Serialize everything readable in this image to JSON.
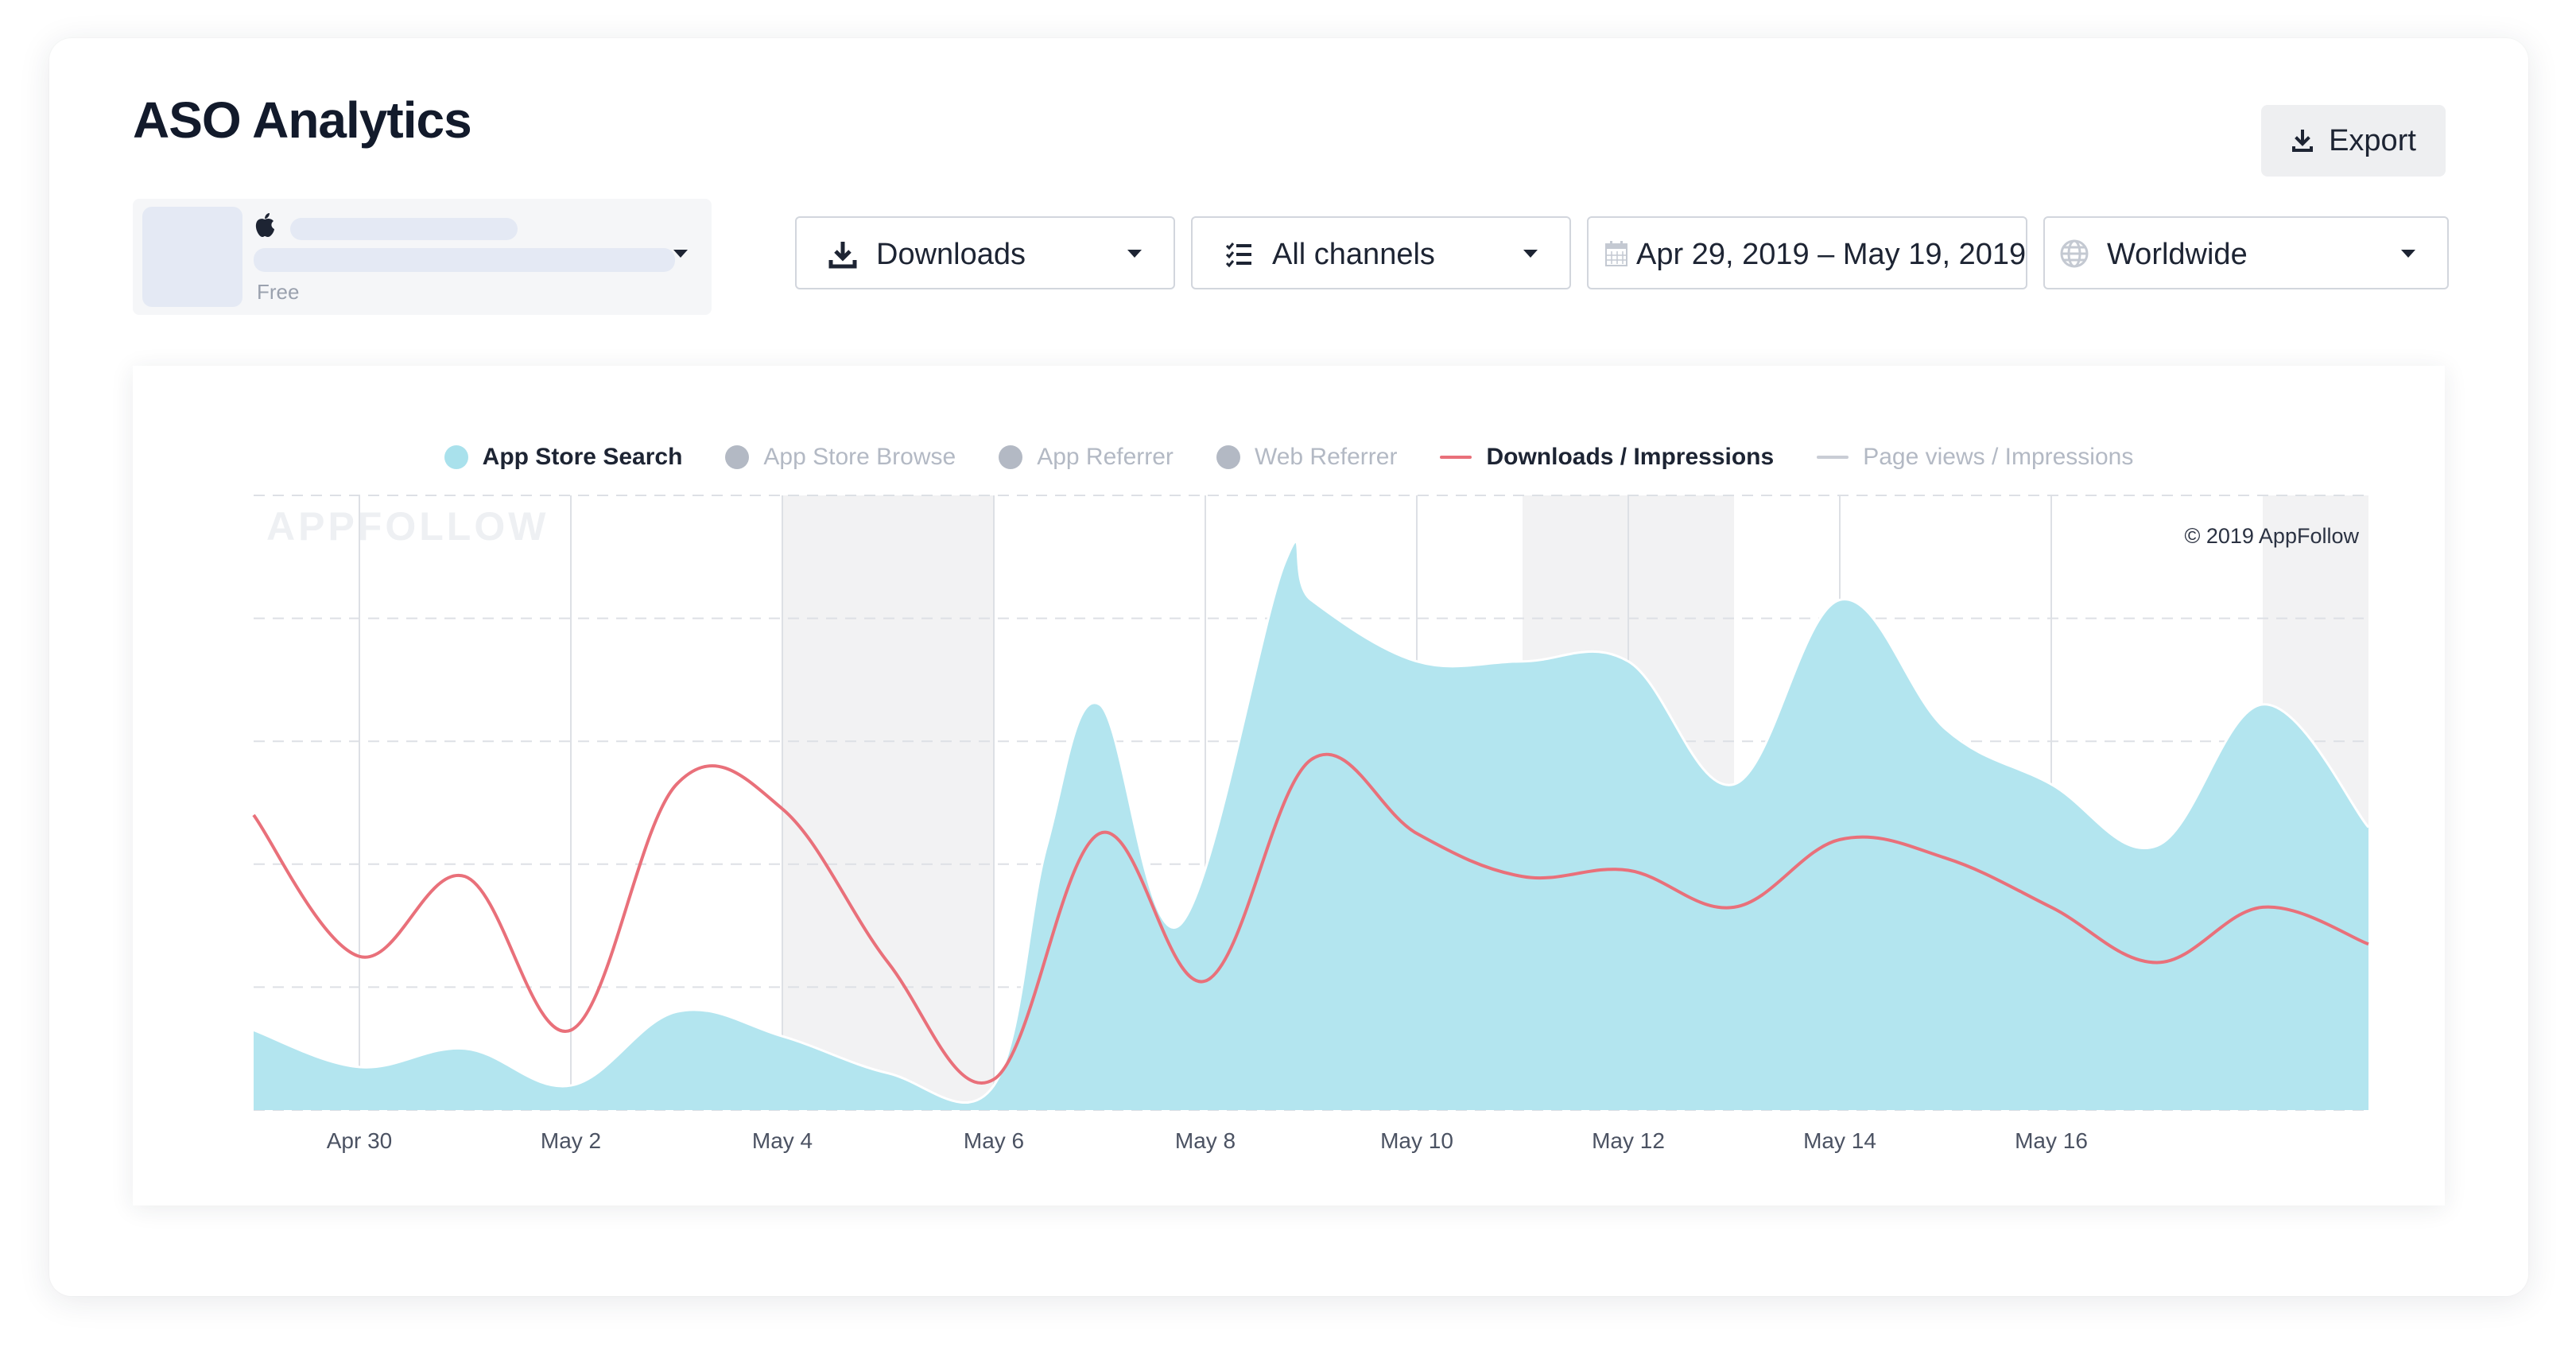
{
  "header": {
    "title": "ASO Analytics",
    "export_label": "Export"
  },
  "app_picker": {
    "price": "Free",
    "store_icon": "apple-icon"
  },
  "filters": {
    "metric": {
      "label": "Downloads",
      "icon": "download-icon"
    },
    "channels": {
      "label": "All channels",
      "icon": "checklist-icon"
    },
    "date_range": {
      "label": "Apr 29, 2019 – May 19, 2019",
      "icon": "calendar-icon"
    },
    "region": {
      "label": "Worldwide",
      "icon": "globe-icon"
    }
  },
  "colors": {
    "search_area": "#b3e5ef",
    "ratio_line": "#e9707a",
    "weekend_band": "#f2f2f3",
    "grid": "#dde0e5",
    "legend_off": "#b3b9c4",
    "page_views_line": "#c9cdd5"
  },
  "chart_data": {
    "type": "area",
    "watermark": "APPFOLLOW",
    "copyright": "© 2019 AppFollow",
    "x_tick_labels": [
      "Apr 30",
      "May 2",
      "May 4",
      "May 6",
      "May 8",
      "May 10",
      "May 12",
      "May 14",
      "May 16"
    ],
    "x_domain": [
      "Apr 29",
      "May 19"
    ],
    "weekend_bands": [
      [
        "May 4",
        "May 6"
      ],
      [
        "May 11",
        "May 13"
      ],
      [
        "May 18",
        "May 19"
      ]
    ],
    "y_axis_labels": "none",
    "grid": "horizontal dashed, vertical solid",
    "legend_position": "top-center",
    "legend": [
      {
        "name": "App Store Search",
        "active": true,
        "marker": "dot",
        "color": "#a9e1ec"
      },
      {
        "name": "App Store Browse",
        "active": false,
        "marker": "dot",
        "color": "#b3b9c4"
      },
      {
        "name": "App Referrer",
        "active": false,
        "marker": "dot",
        "color": "#b3b9c4"
      },
      {
        "name": "Web Referrer",
        "active": false,
        "marker": "dot",
        "color": "#b3b9c4"
      },
      {
        "name": "Downloads / Impressions",
        "active": true,
        "marker": "line",
        "color": "#e9707a"
      },
      {
        "name": "Page views / Impressions",
        "active": false,
        "marker": "line",
        "color": "#c9cdd5"
      }
    ],
    "series": [
      {
        "name": "App Store Search",
        "kind": "area",
        "note": "relative level, 0 = baseline, 100 = top gridline; no y-axis values shown",
        "points": [
          [
            "Apr 29",
            13
          ],
          [
            "Apr 30",
            7
          ],
          [
            "May 1",
            10
          ],
          [
            "May 2",
            4
          ],
          [
            "May 3",
            16
          ],
          [
            "May 4",
            12
          ],
          [
            "May 5",
            6
          ],
          [
            "May 6",
            4
          ],
          [
            "May 6 12h",
            43
          ],
          [
            "May 7",
            66
          ],
          [
            "May 7 18h",
            30
          ],
          [
            "May 8 18h",
            89
          ],
          [
            "May 9",
            83
          ],
          [
            "May 10",
            73
          ],
          [
            "May 11",
            73
          ],
          [
            "May 12",
            73
          ],
          [
            "May 13",
            53
          ],
          [
            "May 14",
            83
          ],
          [
            "May 15",
            62
          ],
          [
            "May 16",
            53
          ],
          [
            "May 17",
            43
          ],
          [
            "May 18",
            66
          ],
          [
            "May 19",
            46
          ]
        ]
      },
      {
        "name": "Downloads / Impressions",
        "kind": "line",
        "note": "relative level, 0 = baseline, 100 = top gridline",
        "points": [
          [
            "Apr 29",
            48
          ],
          [
            "Apr 30",
            25
          ],
          [
            "May 1",
            38
          ],
          [
            "May 2",
            13
          ],
          [
            "May 3",
            53
          ],
          [
            "May 4",
            49
          ],
          [
            "May 5",
            24
          ],
          [
            "May 6",
            5
          ],
          [
            "May 7",
            45
          ],
          [
            "May 8",
            21
          ],
          [
            "May 9",
            57
          ],
          [
            "May 10",
            45
          ],
          [
            "May 11",
            38
          ],
          [
            "May 12",
            39
          ],
          [
            "May 13",
            33
          ],
          [
            "May 14",
            44
          ],
          [
            "May 15",
            41
          ],
          [
            "May 16",
            33
          ],
          [
            "May 17",
            24
          ],
          [
            "May 18",
            33
          ],
          [
            "May 19",
            27
          ]
        ]
      }
    ]
  }
}
